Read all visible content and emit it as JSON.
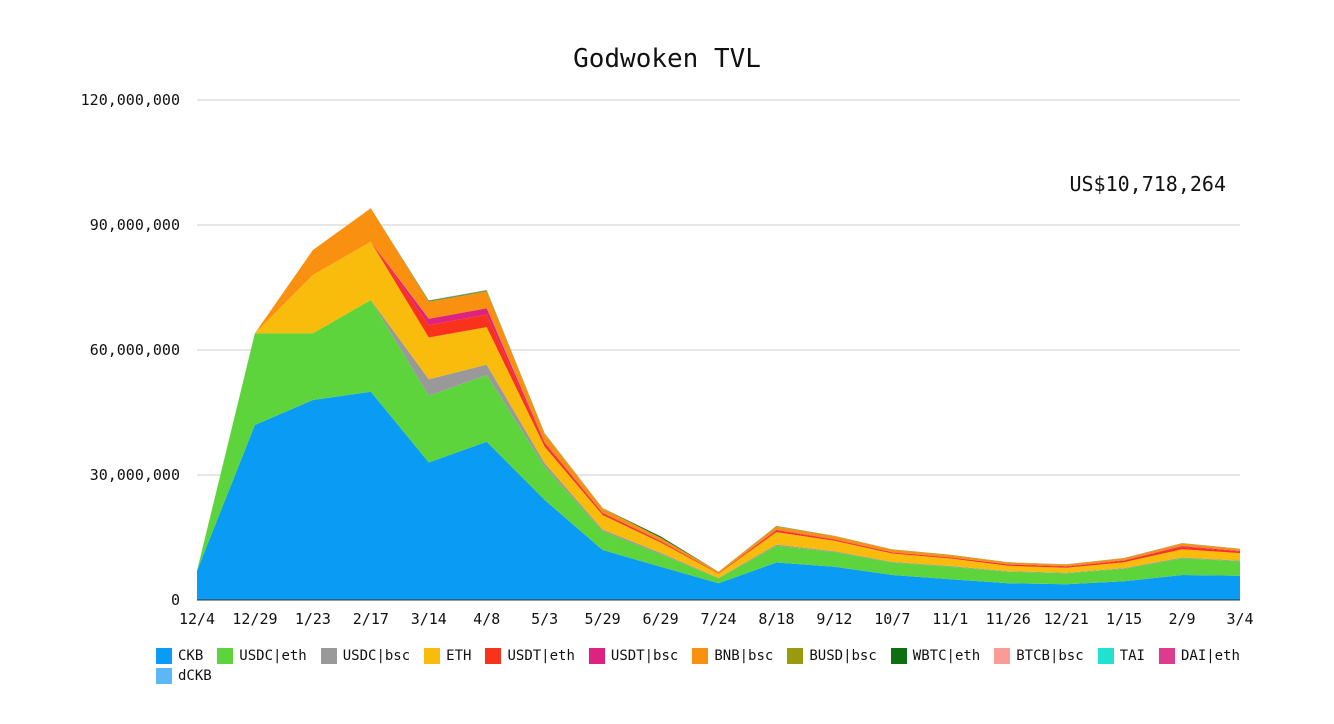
{
  "chart_data": {
    "type": "area",
    "stacked": true,
    "title": "Godwoken TVL",
    "annotation": "US$10,718,264",
    "xlabel": "",
    "ylabel": "",
    "ylim": [
      0,
      120000000
    ],
    "yticks": [
      {
        "value": 0,
        "label": "0"
      },
      {
        "value": 30000000,
        "label": "30,000,000"
      },
      {
        "value": 60000000,
        "label": "60,000,000"
      },
      {
        "value": 90000000,
        "label": "90,000,000"
      },
      {
        "value": 120000000,
        "label": "120,000,000"
      }
    ],
    "grid": true,
    "legend_position": "bottom",
    "x": [
      "12/4",
      "12/29",
      "1/23",
      "2/17",
      "3/14",
      "4/8",
      "5/3",
      "5/29",
      "6/29",
      "7/24",
      "8/18",
      "9/12",
      "10/7",
      "11/1",
      "11/26",
      "12/21",
      "1/15",
      "2/9",
      "3/4"
    ],
    "x_labels": [
      "12/4",
      "12/29",
      "1/23",
      "2/17",
      "3/14",
      "4/8",
      "5/3",
      "5/29",
      "6/29",
      "7/24",
      "8/18",
      "9/12",
      "10/7",
      "11/1",
      "11/26",
      "12/21",
      "1/15",
      "2/9",
      "3/4"
    ],
    "series": [
      {
        "name": "CKB",
        "color": "#0a9bf5",
        "values": [
          7000000,
          42000000,
          48000000,
          50000000,
          33000000,
          38000000,
          24000000,
          12000000,
          8000000,
          4000000,
          9000000,
          8000000,
          6000000,
          5000000,
          4000000,
          3800000,
          4500000,
          6000000,
          5800000
        ]
      },
      {
        "name": "USDC|eth",
        "color": "#5dd43c",
        "values": [
          0,
          22000000,
          16000000,
          22000000,
          16000000,
          16000000,
          8000000,
          4500000,
          3000000,
          1200000,
          4000000,
          3500000,
          3000000,
          3000000,
          2800000,
          2600000,
          3000000,
          4000000,
          3500000
        ]
      },
      {
        "name": "USDC|bsc",
        "color": "#999999",
        "values": [
          0,
          0,
          0,
          0,
          4000000,
          2500000,
          800000,
          400000,
          300000,
          100000,
          300000,
          200000,
          150000,
          150000,
          120000,
          120000,
          150000,
          200000,
          150000
        ]
      },
      {
        "name": "ETH",
        "color": "#f9bc0c",
        "values": [
          0,
          0,
          14000000,
          14000000,
          10000000,
          9000000,
          4000000,
          3500000,
          2500000,
          1000000,
          3000000,
          2500000,
          2000000,
          1800000,
          1300000,
          1200000,
          1400000,
          2000000,
          1800000
        ]
      },
      {
        "name": "USDT|eth",
        "color": "#f9331b",
        "values": [
          0,
          0,
          0,
          0,
          3000000,
          3000000,
          700000,
          400000,
          300000,
          100000,
          400000,
          300000,
          250000,
          250000,
          300000,
          300000,
          400000,
          600000,
          400000
        ]
      },
      {
        "name": "USDT|bsc",
        "color": "#de2280",
        "values": [
          0,
          0,
          0,
          0,
          1500000,
          1500000,
          300000,
          150000,
          100000,
          50000,
          150000,
          100000,
          80000,
          80000,
          80000,
          80000,
          100000,
          150000,
          100000
        ]
      },
      {
        "name": "BNB|bsc",
        "color": "#fa9010",
        "values": [
          0,
          0,
          6000000,
          8000000,
          4000000,
          4000000,
          2000000,
          1000000,
          700000,
          300000,
          800000,
          700000,
          600000,
          500000,
          400000,
          400000,
          450000,
          600000,
          500000
        ]
      },
      {
        "name": "BUSD|bsc",
        "color": "#9a9a0e",
        "values": [
          0,
          0,
          0,
          0,
          200000,
          200000,
          100000,
          60000,
          60000,
          20000,
          60000,
          50000,
          40000,
          40000,
          30000,
          30000,
          30000,
          40000,
          30000
        ]
      },
      {
        "name": "WBTC|eth",
        "color": "#0f6e0f",
        "values": [
          0,
          0,
          0,
          0,
          100000,
          100000,
          60000,
          40000,
          300000,
          20000,
          40000,
          30000,
          30000,
          30000,
          20000,
          20000,
          20000,
          30000,
          20000
        ]
      },
      {
        "name": "BTCB|bsc",
        "color": "#f99c96",
        "values": [
          0,
          0,
          0,
          0,
          60000,
          60000,
          30000,
          20000,
          20000,
          10000,
          20000,
          20000,
          15000,
          15000,
          10000,
          10000,
          10000,
          15000,
          10000
        ]
      },
      {
        "name": "TAI",
        "color": "#21e2cf",
        "values": [
          0,
          0,
          0,
          0,
          20000,
          20000,
          10000,
          10000,
          10000,
          5000,
          10000,
          10000,
          5000,
          5000,
          5000,
          5000,
          5000,
          5000,
          5000
        ]
      },
      {
        "name": "DAI|eth",
        "color": "#db3c8e",
        "values": [
          0,
          0,
          0,
          0,
          20000,
          20000,
          10000,
          10000,
          10000,
          5000,
          10000,
          10000,
          5000,
          5000,
          5000,
          5000,
          5000,
          5000,
          5000
        ]
      },
      {
        "name": "dCKB",
        "color": "#5bb8f5",
        "values": [
          0,
          0,
          0,
          0,
          20000,
          20000,
          10000,
          10000,
          10000,
          5000,
          10000,
          10000,
          5000,
          5000,
          5000,
          5000,
          5000,
          5000,
          5000
        ]
      }
    ]
  }
}
